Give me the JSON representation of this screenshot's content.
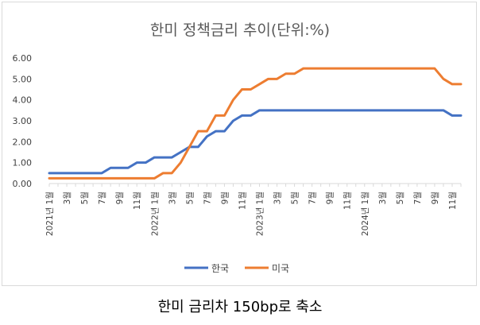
{
  "chart_data": {
    "type": "line",
    "title": "한미 정책금리 추이(단위:%)",
    "xlabel": "",
    "ylabel": "",
    "ylim": [
      0,
      6
    ],
    "yticks": [
      "0.00",
      "1.00",
      "2.00",
      "3.00",
      "4.00",
      "5.00",
      "6.00"
    ],
    "grid": false,
    "legend_position": "bottom",
    "x_tick_labels": [
      "2021년 1월",
      "3월",
      "5월",
      "7월",
      "9월",
      "11월",
      "2022년 1월",
      "3월",
      "5월",
      "7월",
      "9월",
      "11월",
      "2023년 1월",
      "3월",
      "5월",
      "7월",
      "9월",
      "11월",
      "2024년 1월",
      "3월",
      "5월",
      "7월",
      "9월",
      "11월"
    ],
    "series": [
      {
        "name": "한국",
        "color": "#4472C4",
        "values": [
          0.5,
          0.5,
          0.5,
          0.5,
          0.5,
          0.5,
          0.5,
          0.75,
          0.75,
          0.75,
          1.0,
          1.0,
          1.25,
          1.25,
          1.25,
          1.5,
          1.75,
          1.75,
          2.25,
          2.5,
          2.5,
          3.0,
          3.25,
          3.25,
          3.5,
          3.5,
          3.5,
          3.5,
          3.5,
          3.5,
          3.5,
          3.5,
          3.5,
          3.5,
          3.5,
          3.5,
          3.5,
          3.5,
          3.5,
          3.5,
          3.5,
          3.5,
          3.5,
          3.5,
          3.5,
          3.5,
          3.25,
          3.25
        ]
      },
      {
        "name": "미국",
        "color": "#ED7D31",
        "values": [
          0.25,
          0.25,
          0.25,
          0.25,
          0.25,
          0.25,
          0.25,
          0.25,
          0.25,
          0.25,
          0.25,
          0.25,
          0.25,
          0.5,
          0.5,
          1.0,
          1.75,
          2.5,
          2.5,
          3.25,
          3.25,
          4.0,
          4.5,
          4.5,
          4.75,
          5.0,
          5.0,
          5.25,
          5.25,
          5.5,
          5.5,
          5.5,
          5.5,
          5.5,
          5.5,
          5.5,
          5.5,
          5.5,
          5.5,
          5.5,
          5.5,
          5.5,
          5.5,
          5.5,
          5.5,
          5.0,
          4.75,
          4.75
        ]
      }
    ]
  },
  "caption": "한미 금리차 150bp로 축소"
}
